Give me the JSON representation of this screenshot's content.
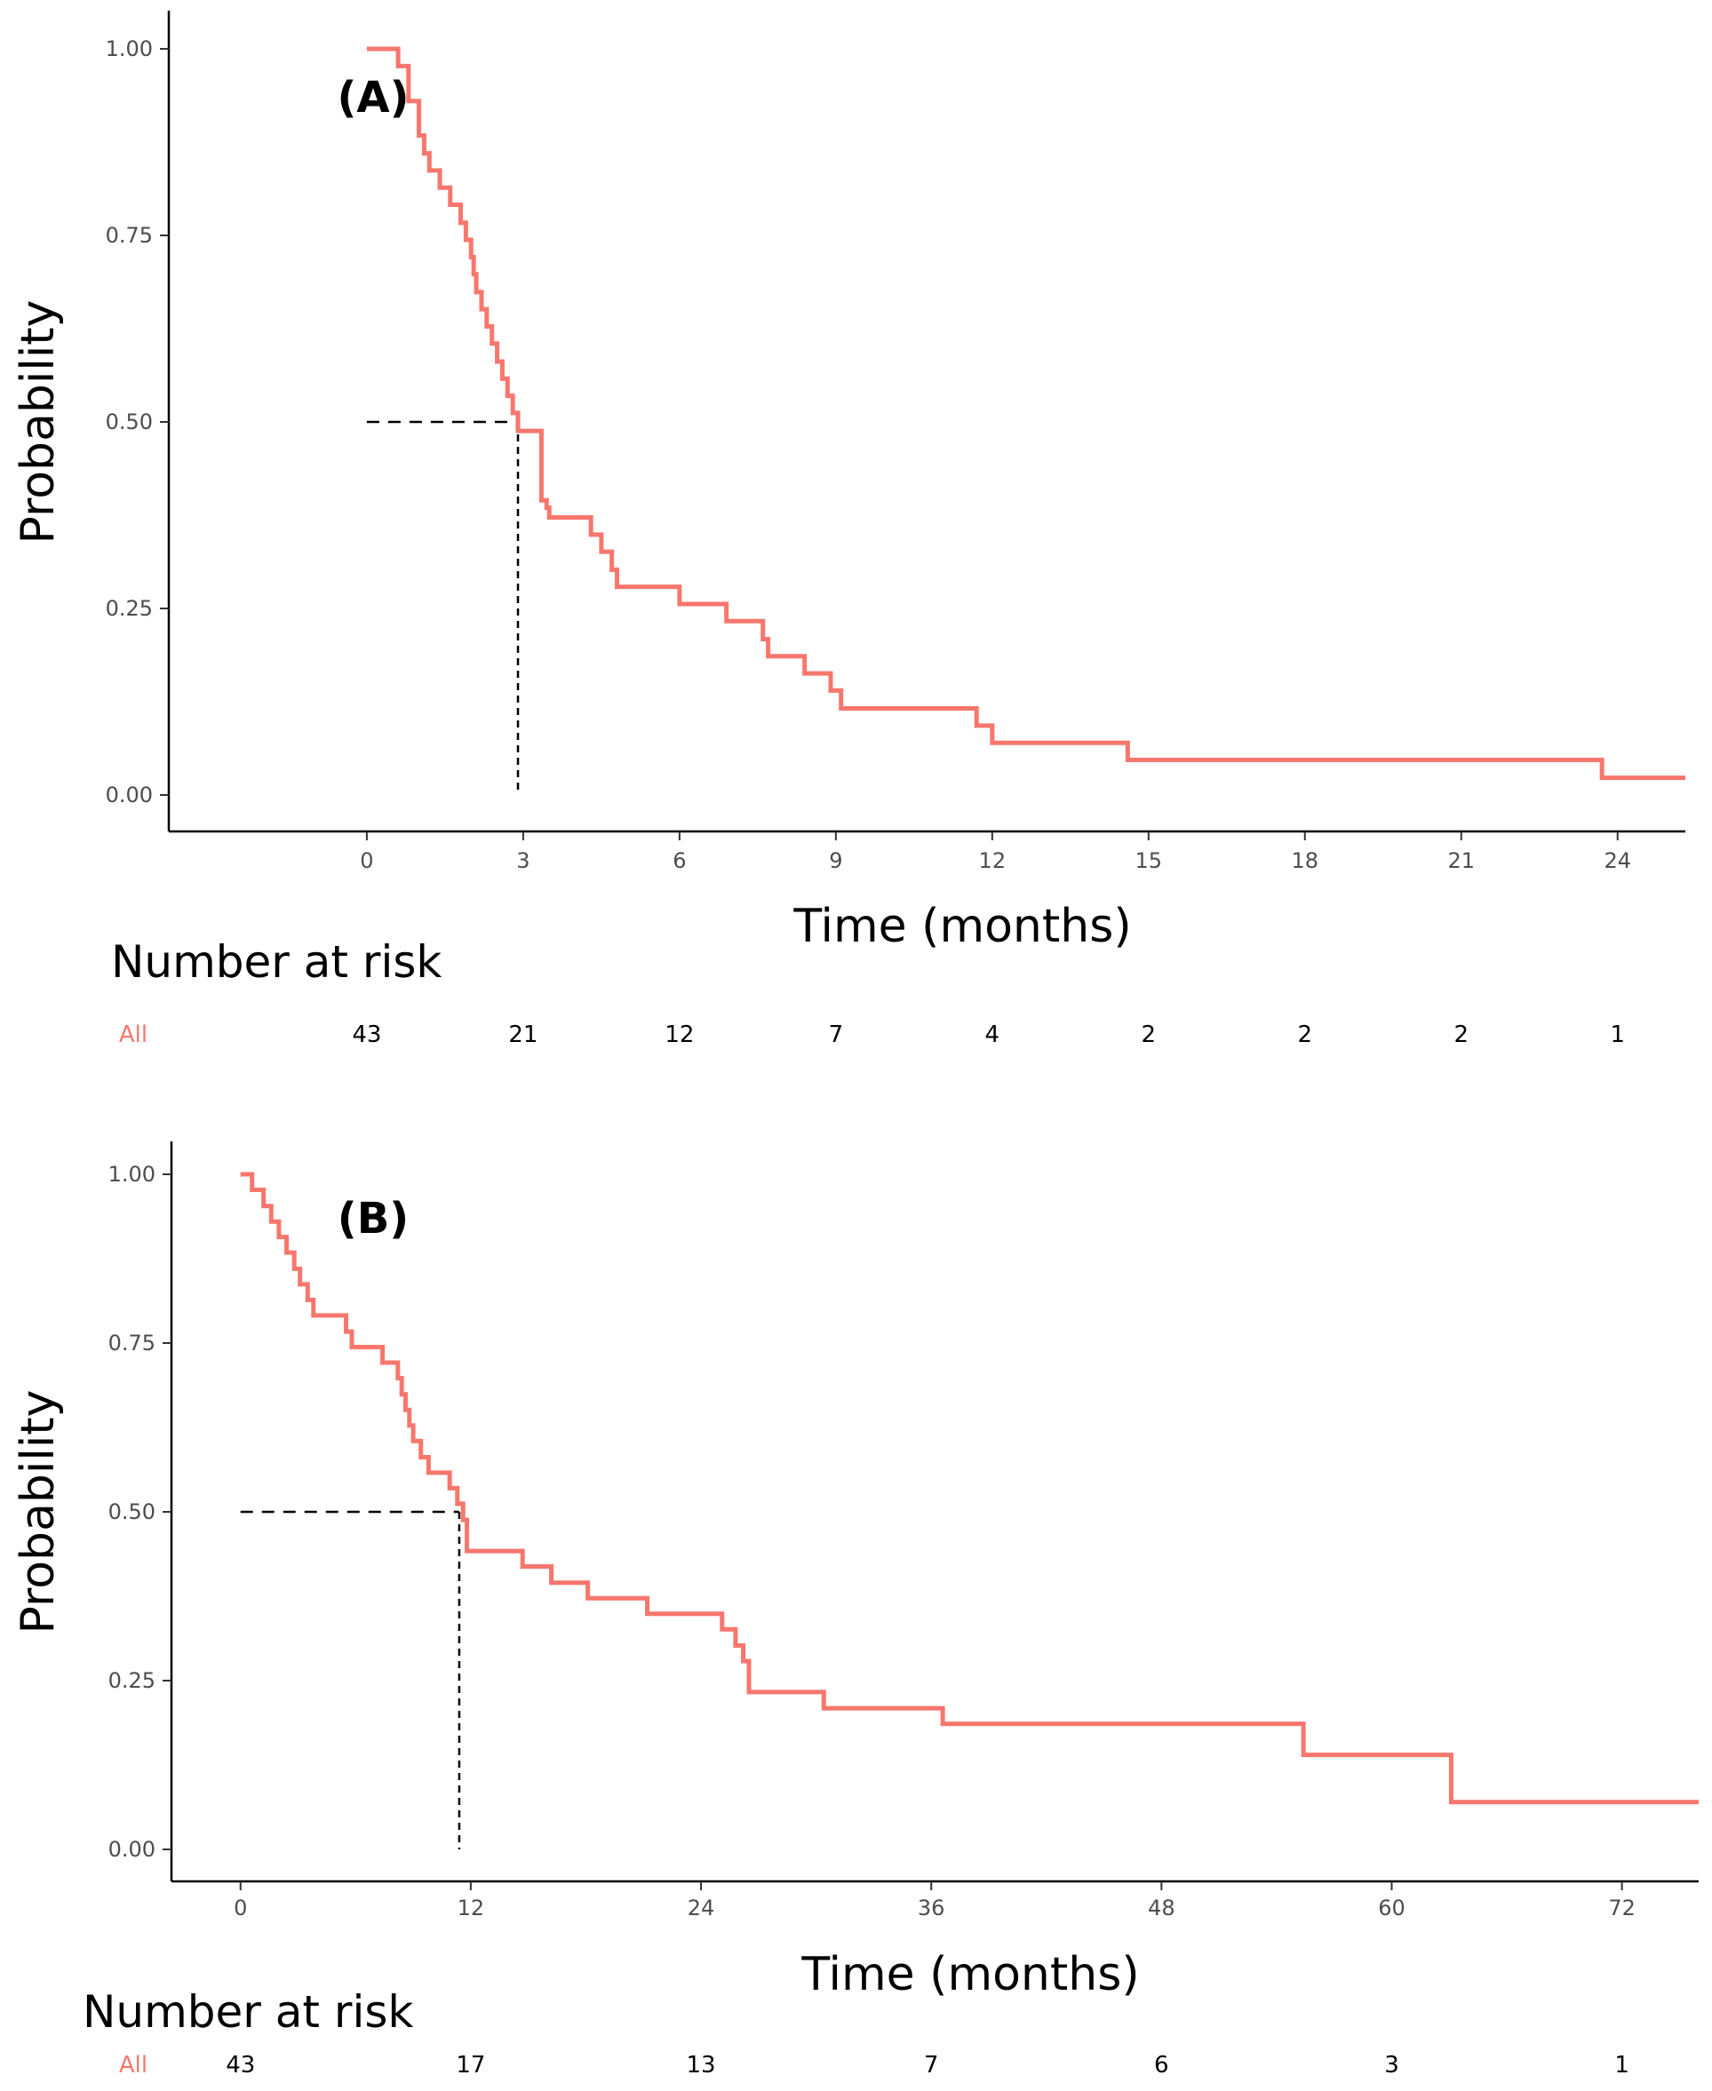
{
  "colors": {
    "curve": "#f8766d",
    "axis": "#000000",
    "median": "#000000",
    "strata_label": "#f8766d"
  },
  "chart_data": [
    {
      "type": "line",
      "subtype": "kaplan-meier",
      "panel_label": "(A)",
      "xlabel": "Time (months)",
      "ylabel": "Probability",
      "xlim": [
        -3.8,
        25.3
      ],
      "ylim": [
        -0.05,
        1.05
      ],
      "xticks": [
        0,
        3,
        6,
        9,
        12,
        15,
        18,
        21,
        24
      ],
      "xtick_labels": [
        "0",
        "3",
        "6",
        "9",
        "12",
        "15",
        "18",
        "21",
        "24"
      ],
      "yticks": [
        0.0,
        0.25,
        0.5,
        0.75,
        1.0
      ],
      "ytick_labels": [
        "0.00",
        "0.25",
        "0.50",
        "0.75",
        "1.00"
      ],
      "median": 2.9,
      "series": [
        {
          "name": "All",
          "x": [
            0,
            0.6,
            0.8,
            1.0,
            1.1,
            1.2,
            1.4,
            1.6,
            1.8,
            1.9,
            2.0,
            2.05,
            2.1,
            2.2,
            2.3,
            2.4,
            2.5,
            2.6,
            2.7,
            2.8,
            2.9,
            3.35,
            3.45,
            3.5,
            4.3,
            4.5,
            4.7,
            4.8,
            6.0,
            6.9,
            7.6,
            7.7,
            8.4,
            8.9,
            9.1,
            11.7,
            12.0,
            14.6,
            23.7,
            25.3
          ],
          "y": [
            1.0,
            0.977,
            0.93,
            0.884,
            0.86,
            0.837,
            0.814,
            0.791,
            0.767,
            0.744,
            0.721,
            0.698,
            0.674,
            0.651,
            0.628,
            0.605,
            0.581,
            0.558,
            0.535,
            0.512,
            0.488,
            0.395,
            0.385,
            0.372,
            0.349,
            0.326,
            0.302,
            0.279,
            0.256,
            0.233,
            0.209,
            0.186,
            0.163,
            0.14,
            0.116,
            0.093,
            0.07,
            0.047,
            0.023,
            0.023
          ]
        }
      ],
      "risk_table": {
        "title": "Number at risk",
        "strata_label": "All",
        "times": [
          0,
          3,
          6,
          9,
          12,
          15,
          18,
          21,
          24
        ],
        "values": [
          "43",
          "21",
          "12",
          "7",
          "4",
          "2",
          "2",
          "2",
          "1"
        ]
      }
    },
    {
      "type": "line",
      "subtype": "kaplan-meier",
      "panel_label": "(B)",
      "xlabel": "Time (months)",
      "ylabel": "Probability",
      "xlim": [
        -3.6,
        76
      ],
      "ylim": [
        -0.05,
        1.05
      ],
      "xticks": [
        0,
        12,
        24,
        36,
        48,
        60,
        72
      ],
      "xtick_labels": [
        "0",
        "12",
        "24",
        "36",
        "48",
        "60",
        "72"
      ],
      "yticks": [
        0.0,
        0.25,
        0.5,
        0.75,
        1.0
      ],
      "ytick_labels": [
        "0.00",
        "0.25",
        "0.50",
        "0.75",
        "1.00"
      ],
      "median": 11.4,
      "series": [
        {
          "name": "All",
          "x": [
            0,
            0.6,
            1.2,
            1.6,
            2.0,
            2.4,
            2.8,
            3.1,
            3.5,
            3.8,
            4.0,
            5.5,
            5.8,
            7.4,
            8.2,
            8.4,
            8.6,
            8.8,
            9.0,
            9.4,
            9.8,
            10.9,
            11.3,
            11.6,
            11.8,
            14.7,
            16.2,
            18.1,
            21.2,
            25.1,
            25.8,
            26.2,
            26.5,
            30.4,
            36.6,
            55.4,
            63.1,
            76
          ],
          "y": [
            1.0,
            0.977,
            0.953,
            0.93,
            0.907,
            0.884,
            0.86,
            0.837,
            0.814,
            0.791,
            0.791,
            0.767,
            0.744,
            0.721,
            0.698,
            0.674,
            0.651,
            0.628,
            0.605,
            0.581,
            0.558,
            0.535,
            0.512,
            0.488,
            0.442,
            0.419,
            0.395,
            0.372,
            0.349,
            0.326,
            0.302,
            0.279,
            0.233,
            0.209,
            0.186,
            0.14,
            0.07,
            0.07
          ]
        }
      ],
      "risk_table": {
        "title": "Number at risk",
        "strata_label": "All",
        "times": [
          0,
          12,
          24,
          36,
          48,
          60,
          72
        ],
        "values": [
          "43",
          "17",
          "13",
          "7",
          "6",
          "3",
          "1"
        ]
      }
    }
  ]
}
